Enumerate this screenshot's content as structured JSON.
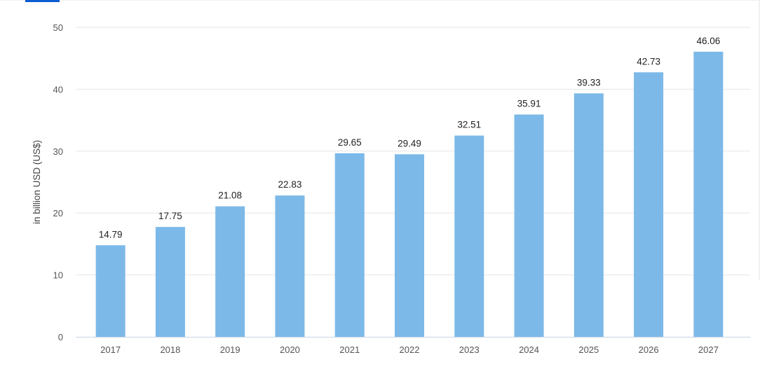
{
  "chart_data": {
    "type": "bar",
    "categories": [
      "2017",
      "2018",
      "2019",
      "2020",
      "2021",
      "2022",
      "2023",
      "2024",
      "2025",
      "2026",
      "2027"
    ],
    "values": [
      14.79,
      17.75,
      21.08,
      22.83,
      29.65,
      29.49,
      32.51,
      35.91,
      39.33,
      42.73,
      46.06
    ],
    "value_labels": [
      "14.79",
      "17.75",
      "21.08",
      "22.83",
      "29.65",
      "29.49",
      "32.51",
      "35.91",
      "39.33",
      "42.73",
      "46.06"
    ],
    "ylabel": "in billion USD (US$)",
    "ylim": [
      0,
      50
    ],
    "yticks": [
      "0",
      "10",
      "20",
      "30",
      "40",
      "50"
    ],
    "grid": true,
    "colors": {
      "bar": "#7cb9e8",
      "grid": "#e6e6e6",
      "axis": "#c8d4e3"
    }
  }
}
